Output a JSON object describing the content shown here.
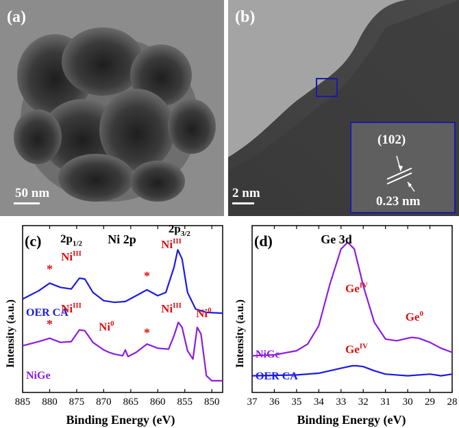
{
  "panels": {
    "a": {
      "label": "(a)",
      "scale_text": "50 nm"
    },
    "b": {
      "label": "(b)",
      "scale_text": "2 nm",
      "inset": {
        "plane": "(102)",
        "spacing": "0.23 nm"
      }
    },
    "c": {
      "label": "(c)"
    },
    "d": {
      "label": "(d)"
    }
  },
  "colors": {
    "blue": "#1a1ae6",
    "purple": "#8c1ae6",
    "red": "#e01010",
    "inset_border": "#1a1aa8"
  },
  "chart_data": [
    {
      "type": "line",
      "panel": "(c)",
      "title": "Ni 2p",
      "xlabel": "Binding Energy (eV)",
      "ylabel": "Intensity (a.u.)",
      "xlim": [
        885,
        848
      ],
      "xticks": [
        "885",
        "880",
        "875",
        "870",
        "865",
        "860",
        "855",
        "850"
      ],
      "series": [
        {
          "name": "OER CA",
          "color": "#1a1ae6",
          "x": [
            885,
            882,
            880,
            878,
            876,
            874.5,
            873.5,
            872,
            870,
            868,
            866,
            864,
            862,
            860,
            858.5,
            857,
            856.3,
            855.5,
            854.5,
            853,
            851,
            848
          ],
          "y": [
            0.56,
            0.61,
            0.655,
            0.63,
            0.62,
            0.685,
            0.68,
            0.6,
            0.55,
            0.54,
            0.545,
            0.58,
            0.615,
            0.58,
            0.6,
            0.75,
            0.855,
            0.8,
            0.6,
            0.5,
            0.48,
            0.475
          ]
        },
        {
          "name": "NiGe",
          "color": "#8c1ae6",
          "x": [
            885,
            882,
            880,
            878,
            876,
            874.5,
            873.5,
            872,
            870,
            869,
            868,
            866.5,
            866,
            865.5,
            864,
            862,
            860,
            858,
            857,
            856.2,
            855.5,
            854.5,
            853.5,
            852.7,
            852,
            851,
            850,
            848
          ],
          "y": [
            0.28,
            0.305,
            0.325,
            0.3,
            0.305,
            0.375,
            0.37,
            0.3,
            0.255,
            0.24,
            0.23,
            0.22,
            0.255,
            0.215,
            0.24,
            0.29,
            0.265,
            0.26,
            0.34,
            0.42,
            0.39,
            0.25,
            0.2,
            0.39,
            0.35,
            0.1,
            0.07,
            0.07
          ]
        }
      ],
      "annotations": [
        {
          "text": "2p",
          "sub": "1/2",
          "x": 876,
          "y": 0.9
        },
        {
          "text": "2p",
          "sub": "3/2",
          "x": 856,
          "y": 0.96
        },
        {
          "text": "Ni",
          "sup": "III",
          "x": 876,
          "y": 0.79
        },
        {
          "text": "Ni",
          "sup": "III",
          "x": 857.5,
          "y": 0.865
        },
        {
          "text": "Ni",
          "sup": "III",
          "x": 876,
          "y": 0.48
        },
        {
          "text": "Ni",
          "sup": "III",
          "x": 857.5,
          "y": 0.48
        },
        {
          "text": "Ni",
          "sup": "0",
          "x": 869.5,
          "y": 0.37
        },
        {
          "text": "Ni",
          "sup": "0",
          "x": 851.5,
          "y": 0.45
        },
        {
          "text": "*",
          "x": 880,
          "y": 0.715
        },
        {
          "text": "*",
          "x": 862,
          "y": 0.675
        },
        {
          "text": "*",
          "x": 880,
          "y": 0.385
        },
        {
          "text": "*",
          "x": 862,
          "y": 0.335
        }
      ]
    },
    {
      "type": "line",
      "panel": "(d)",
      "title": "Ge 3d",
      "xlabel": "Binding Energy (eV)",
      "ylabel": "Intensity (a.u.)",
      "xlim": [
        37,
        28
      ],
      "xticks": [
        "37",
        "36",
        "35",
        "34",
        "33",
        "32",
        "31",
        "30",
        "29",
        "28"
      ],
      "series": [
        {
          "name": "NiGe",
          "color": "#8c1ae6",
          "x": [
            37,
            36,
            35,
            34.5,
            34,
            33.5,
            33,
            32.7,
            32.4,
            32,
            31.5,
            31,
            30.5,
            30,
            29.8,
            29.5,
            29,
            28.5,
            28
          ],
          "y": [
            0.22,
            0.225,
            0.25,
            0.29,
            0.4,
            0.65,
            0.86,
            0.9,
            0.86,
            0.64,
            0.42,
            0.32,
            0.31,
            0.325,
            0.33,
            0.325,
            0.3,
            0.265,
            0.24
          ]
        },
        {
          "name": "OER CA",
          "color": "#1a1ae6",
          "x": [
            37,
            35,
            34,
            33,
            32.5,
            32.3,
            32,
            31.5,
            31,
            30,
            29,
            28.5,
            28
          ],
          "y": [
            0.1,
            0.105,
            0.115,
            0.145,
            0.16,
            0.16,
            0.155,
            0.13,
            0.11,
            0.1,
            0.11,
            0.1,
            0.11
          ]
        }
      ],
      "annotations": [
        {
          "text": "Ge",
          "sup": "IV",
          "x": 32.3,
          "y": 0.6
        },
        {
          "text": "Ge",
          "sup": "0",
          "x": 29.7,
          "y": 0.43
        },
        {
          "text": "Ge",
          "sup": "IV",
          "x": 32.3,
          "y": 0.235
        }
      ]
    }
  ]
}
